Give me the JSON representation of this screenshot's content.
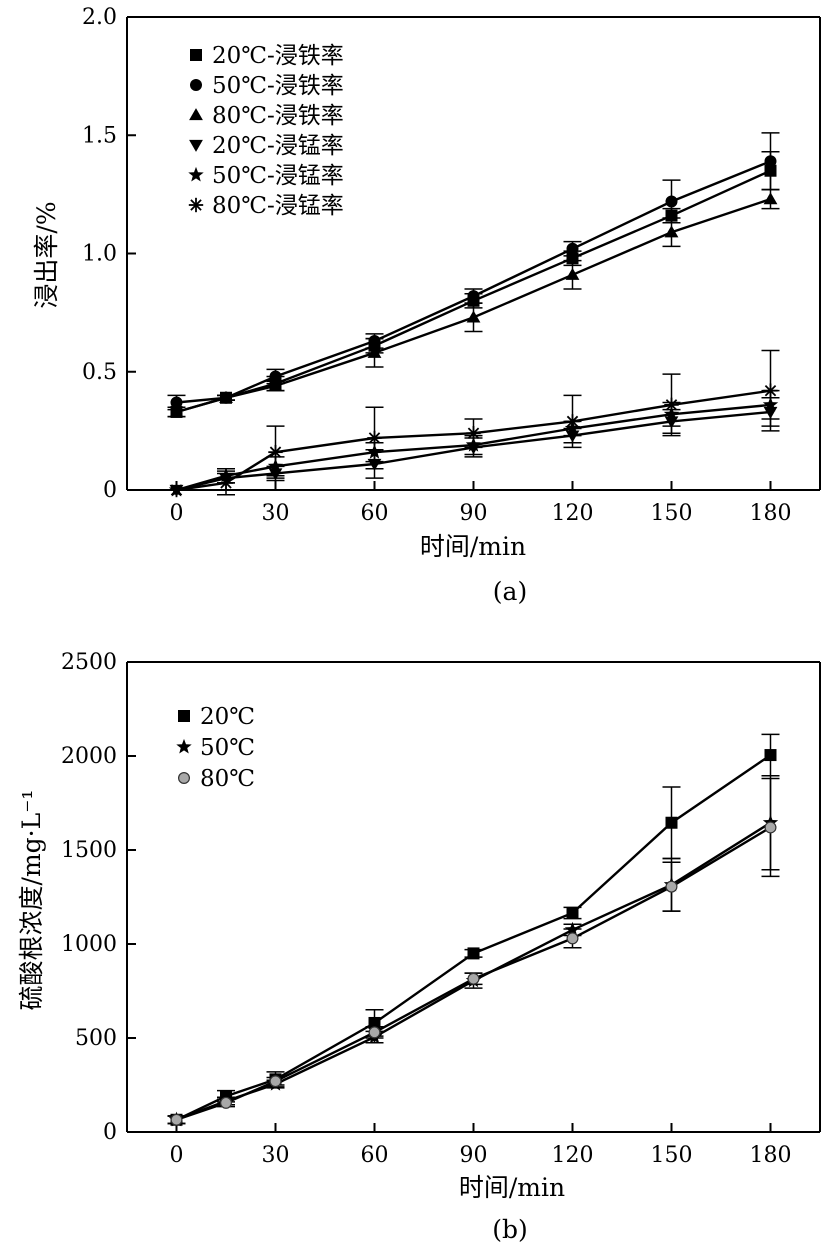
{
  "chart_data": [
    {
      "type": "line",
      "caption": "(a)",
      "xlabel": "时间/min",
      "ylabel": "浸出率/%",
      "x": [
        0,
        15,
        30,
        60,
        90,
        120,
        150,
        180
      ],
      "xticks": [
        0,
        30,
        60,
        90,
        120,
        150,
        180
      ],
      "xtick_labels": [
        "0",
        "30",
        "60",
        "90",
        "120",
        "150",
        "180"
      ],
      "xlim": [
        -15,
        195
      ],
      "ylim": [
        0,
        2.0
      ],
      "yticks": [
        0,
        0.5,
        1.0,
        1.5,
        2.0
      ],
      "ytick_labels": [
        "0",
        "0.5",
        "1.0",
        "1.5",
        "2.0"
      ],
      "legend_position": "top-left",
      "series": [
        {
          "name": "20℃-浸铁率",
          "marker": "square",
          "values": [
            0.33,
            0.39,
            0.45,
            0.61,
            0.8,
            0.98,
            1.16,
            1.35
          ],
          "errors": [
            0.02,
            0.01,
            0.03,
            0.03,
            0.03,
            0.03,
            0.03,
            0.08
          ]
        },
        {
          "name": "50℃-浸铁率",
          "marker": "circle",
          "values": [
            0.37,
            0.39,
            0.48,
            0.63,
            0.82,
            1.02,
            1.22,
            1.39
          ],
          "errors": [
            0.03,
            0.01,
            0.03,
            0.03,
            0.03,
            0.03,
            0.09,
            0.12
          ]
        },
        {
          "name": "80℃-浸铁率",
          "marker": "triangle-up",
          "values": [
            0.33,
            0.39,
            0.44,
            0.58,
            0.73,
            0.91,
            1.09,
            1.23
          ],
          "errors": [
            0.02,
            0.01,
            0.02,
            0.06,
            0.06,
            0.06,
            0.06,
            0.04
          ]
        },
        {
          "name": "20℃-浸锰率",
          "marker": "triangle-down",
          "values": [
            0.0,
            0.05,
            0.07,
            0.11,
            0.18,
            0.23,
            0.29,
            0.33
          ],
          "errors": [
            0.0,
            0.02,
            0.03,
            0.06,
            0.04,
            0.03,
            0.05,
            0.06
          ]
        },
        {
          "name": "50℃-浸锰率",
          "marker": "star",
          "values": [
            0.0,
            0.06,
            0.1,
            0.16,
            0.19,
            0.26,
            0.32,
            0.36
          ],
          "errors": [
            0.0,
            0.03,
            0.04,
            0.04,
            0.04,
            0.03,
            0.05,
            0.06
          ]
        },
        {
          "name": "80℃-浸锰率",
          "marker": "asterisk",
          "values": [
            0.0,
            0.03,
            0.16,
            0.22,
            0.24,
            0.29,
            0.36,
            0.42
          ],
          "errors": [
            0.0,
            0.05,
            0.11,
            0.13,
            0.06,
            0.11,
            0.13,
            0.17
          ]
        }
      ]
    },
    {
      "type": "line",
      "caption": "(b)",
      "xlabel": "时间/min",
      "ylabel": "硫酸根浓度/mg·L⁻¹",
      "x": [
        0,
        15,
        30,
        60,
        90,
        120,
        150,
        180
      ],
      "xticks": [
        0,
        30,
        60,
        90,
        120,
        150,
        180
      ],
      "xtick_labels": [
        "0",
        "30",
        "60",
        "90",
        "120",
        "150",
        "180"
      ],
      "xlim": [
        -15,
        195
      ],
      "ylim": [
        0,
        2500
      ],
      "yticks": [
        0,
        500,
        1000,
        1500,
        2000,
        2500
      ],
      "ytick_labels": [
        "0",
        "500",
        "1000",
        "1500",
        "2000",
        "2500"
      ],
      "legend_position": "top-left",
      "series": [
        {
          "name": "20℃",
          "marker": "square",
          "values": [
            65,
            190,
            280,
            580,
            950,
            1165,
            1645,
            2005
          ],
          "errors": [
            20,
            30,
            40,
            70,
            20,
            30,
            190,
            110
          ]
        },
        {
          "name": "50℃",
          "marker": "star",
          "values": [
            65,
            165,
            255,
            505,
            805,
            1075,
            1315,
            1645
          ],
          "errors": [
            20,
            20,
            20,
            30,
            40,
            30,
            140,
            250
          ]
        },
        {
          "name": "80℃",
          "marker": "circle-gray",
          "values": [
            65,
            155,
            270,
            530,
            815,
            1030,
            1305,
            1620
          ],
          "errors": [
            20,
            20,
            20,
            30,
            30,
            50,
            130,
            260
          ]
        }
      ]
    }
  ]
}
